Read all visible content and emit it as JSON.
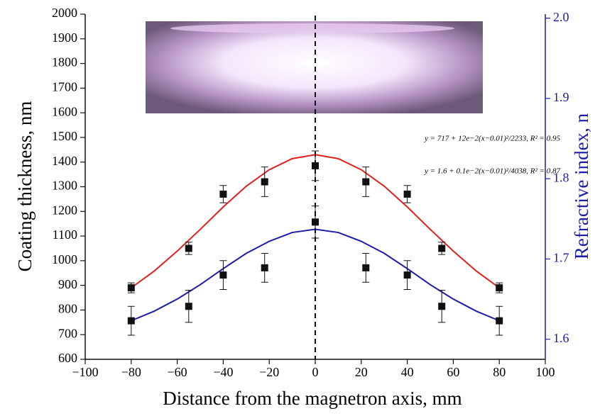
{
  "chart_data": {
    "type": "scatter",
    "xlabel": "Distance from the magnetron axis, mm",
    "ylabel": "Coating thickness, nm",
    "y2label": "Refractive index, n",
    "y2color": "#1c1ca8",
    "xlim": [
      -100,
      100
    ],
    "xticks": [
      {
        "value": -100,
        "label": "−100"
      },
      {
        "value": -80,
        "label": "−80"
      },
      {
        "value": -60,
        "label": "−60"
      },
      {
        "value": -40,
        "label": "−40"
      },
      {
        "value": -20,
        "label": "−20"
      },
      0,
      20,
      40,
      60,
      80,
      100
    ],
    "ylim": [
      600,
      2000
    ],
    "yticks": [
      600,
      700,
      800,
      900,
      1000,
      1100,
      1200,
      1300,
      1400,
      1500,
      1600,
      1700,
      1800,
      1900,
      2000
    ],
    "y2lim": [
      1.575,
      2.005
    ],
    "y2ticks": [
      1.6,
      1.7,
      1.8,
      1.9,
      2.0
    ],
    "annotations": [
      "y = 717 + 12e−2(x−0.01)²/2233, R² = 0.95",
      "y = 1.6 + 0.1e−2(x−0.01)²/4038, R² = 0.87"
    ],
    "series": [
      {
        "mode": "markers",
        "color": "#111111",
        "axis": "y",
        "x": [
          -80,
          -55,
          -40,
          -22,
          0,
          22,
          40,
          55,
          80
        ],
        "values": [
          890,
          1050,
          1270,
          1320,
          1385,
          1320,
          1270,
          1050,
          890
        ],
        "errors": [
          20,
          25,
          35,
          60,
          60,
          60,
          35,
          25,
          20
        ]
      },
      {
        "mode": "markers",
        "color": "#111111",
        "axis": "y2",
        "x": [
          -80,
          -55,
          -40,
          -22,
          0,
          22,
          40,
          55,
          80
        ],
        "values": [
          1.623,
          1.641,
          1.68,
          1.689,
          1.746,
          1.689,
          1.68,
          1.641,
          1.623
        ],
        "errors": [
          0.018,
          0.02,
          0.018,
          0.018,
          0.02,
          0.018,
          0.018,
          0.02,
          0.018
        ]
      },
      {
        "mode": "line",
        "color": "#e0201c",
        "axis": "y",
        "x": [
          -80,
          -70,
          -60,
          -50,
          -40,
          -30,
          -20,
          -10,
          0,
          10,
          20,
          30,
          40,
          50,
          60,
          70,
          80
        ],
        "values": [
          890,
          958,
          1039,
          1127,
          1218,
          1302,
          1369,
          1414,
          1430,
          1414,
          1369,
          1302,
          1218,
          1127,
          1039,
          958,
          890
        ]
      },
      {
        "mode": "line",
        "color": "#1c1ca8",
        "axis": "y2",
        "x": [
          -80,
          -70,
          -60,
          -50,
          -40,
          -30,
          -20,
          -10,
          0,
          10,
          20,
          30,
          40,
          50,
          60,
          70,
          80
        ],
        "values": [
          1.623,
          1.635,
          1.65,
          1.668,
          1.688,
          1.707,
          1.722,
          1.733,
          1.737,
          1.733,
          1.722,
          1.707,
          1.688,
          1.668,
          1.65,
          1.635,
          1.623
        ]
      }
    ]
  }
}
